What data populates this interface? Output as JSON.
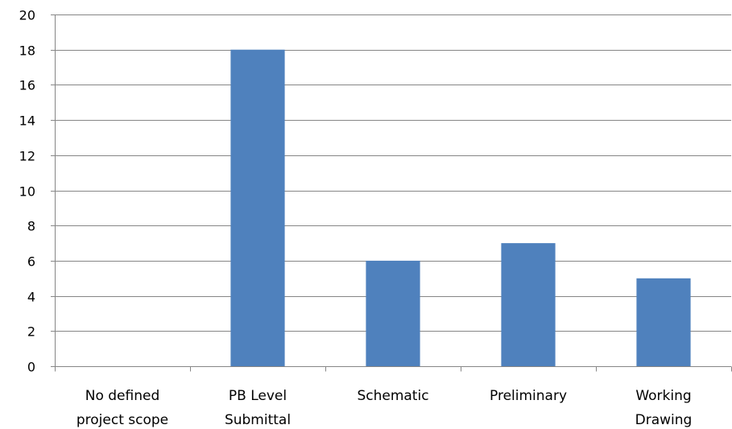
{
  "chart_data": {
    "type": "bar",
    "categories": [
      [
        "No defined",
        "project scope"
      ],
      [
        "PB Level",
        "Submittal"
      ],
      [
        "Schematic"
      ],
      [
        "Preliminary"
      ],
      [
        "Working",
        "Drawing"
      ]
    ],
    "values": [
      0,
      18,
      6,
      7,
      5
    ],
    "title": "",
    "xlabel": "",
    "ylabel": "",
    "ylim": [
      0,
      20
    ],
    "yticks": [
      0,
      2,
      4,
      6,
      8,
      10,
      12,
      14,
      16,
      18,
      20
    ],
    "grid": true,
    "legend": "none",
    "colors": {
      "bar": "#4f81bd",
      "grid": "#868686",
      "axis": "#868686"
    }
  }
}
